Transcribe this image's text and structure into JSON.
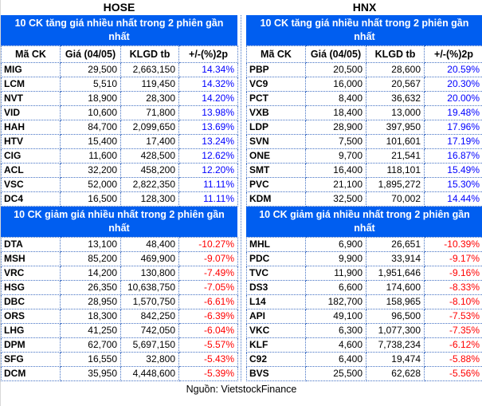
{
  "colors": {
    "banner_blue": "#005EF0",
    "positive_change": "#0000FF",
    "negative_change": "#FF0000",
    "grid_border": "#4472C4"
  },
  "banners": {
    "gainers": "10 CK tăng giá nhiều nhất trong 2 phiên gần nhất",
    "losers": "10 CK giảm giá nhiều nhất trong 2 phiên gần nhất"
  },
  "columns": [
    "Mã CK",
    "Giá (04/05)",
    "KLGD tb",
    "+/-(%)2p"
  ],
  "footer": {
    "source": "Nguồn: VietstockFinance"
  },
  "hose": {
    "title": "HOSE",
    "gainers": [
      [
        "MIG",
        "29,500",
        "2,663,150",
        "14.34%"
      ],
      [
        "LCM",
        "5,510",
        "119,450",
        "14.32%"
      ],
      [
        "NVT",
        "18,900",
        "28,300",
        "14.20%"
      ],
      [
        "VID",
        "10,600",
        "71,800",
        "13.98%"
      ],
      [
        "HAH",
        "84,700",
        "2,099,650",
        "13.69%"
      ],
      [
        "HTV",
        "15,400",
        "17,400",
        "13.24%"
      ],
      [
        "CIG",
        "11,600",
        "428,500",
        "12.62%"
      ],
      [
        "ACL",
        "32,200",
        "458,200",
        "12.20%"
      ],
      [
        "VSC",
        "52,000",
        "2,822,350",
        "11.11%"
      ],
      [
        "DC4",
        "16,500",
        "128,300",
        "11.11%"
      ]
    ],
    "losers": [
      [
        "DTA",
        "13,100",
        "48,400",
        "-10.27%"
      ],
      [
        "MSH",
        "85,200",
        "469,900",
        "-9.07%"
      ],
      [
        "VRC",
        "14,200",
        "130,800",
        "-7.49%"
      ],
      [
        "HSG",
        "26,350",
        "10,638,750",
        "-7.05%"
      ],
      [
        "DBC",
        "28,950",
        "1,570,750",
        "-6.61%"
      ],
      [
        "ORS",
        "18,300",
        "842,250",
        "-6.39%"
      ],
      [
        "LHG",
        "41,250",
        "742,050",
        "-6.04%"
      ],
      [
        "DPM",
        "62,700",
        "5,697,150",
        "-5.57%"
      ],
      [
        "SFG",
        "16,550",
        "32,800",
        "-5.43%"
      ],
      [
        "DCM",
        "35,950",
        "4,448,600",
        "-5.39%"
      ]
    ]
  },
  "hnx": {
    "title": "HNX",
    "gainers": [
      [
        "PBP",
        "20,500",
        "28,600",
        "20.59%"
      ],
      [
        "VC9",
        "16,000",
        "20,567",
        "20.30%"
      ],
      [
        "PCT",
        "8,400",
        "36,632",
        "20.00%"
      ],
      [
        "VXB",
        "18,400",
        "13,000",
        "19.48%"
      ],
      [
        "LDP",
        "28,900",
        "397,950",
        "17.96%"
      ],
      [
        "SVN",
        "7,500",
        "101,601",
        "17.19%"
      ],
      [
        "ONE",
        "9,700",
        "21,541",
        "16.87%"
      ],
      [
        "SMT",
        "16,400",
        "118,101",
        "15.49%"
      ],
      [
        "PVC",
        "21,100",
        "1,895,272",
        "15.30%"
      ],
      [
        "KDM",
        "32,500",
        "70,002",
        "14.44%"
      ]
    ],
    "losers": [
      [
        "MHL",
        "6,900",
        "26,651",
        "-10.39%"
      ],
      [
        "PDC",
        "9,900",
        "33,914",
        "-9.17%"
      ],
      [
        "TVC",
        "11,900",
        "1,951,646",
        "-9.16%"
      ],
      [
        "DS3",
        "6,600",
        "174,600",
        "-8.33%"
      ],
      [
        "L14",
        "182,700",
        "158,965",
        "-8.10%"
      ],
      [
        "API",
        "49,100",
        "96,500",
        "-7.53%"
      ],
      [
        "VKC",
        "6,300",
        "1,077,300",
        "-7.35%"
      ],
      [
        "KLF",
        "4,600",
        "7,738,234",
        "-6.12%"
      ],
      [
        "C92",
        "6,400",
        "19,474",
        "-5.88%"
      ],
      [
        "BVS",
        "25,500",
        "62,628",
        "-5.56%"
      ]
    ]
  }
}
